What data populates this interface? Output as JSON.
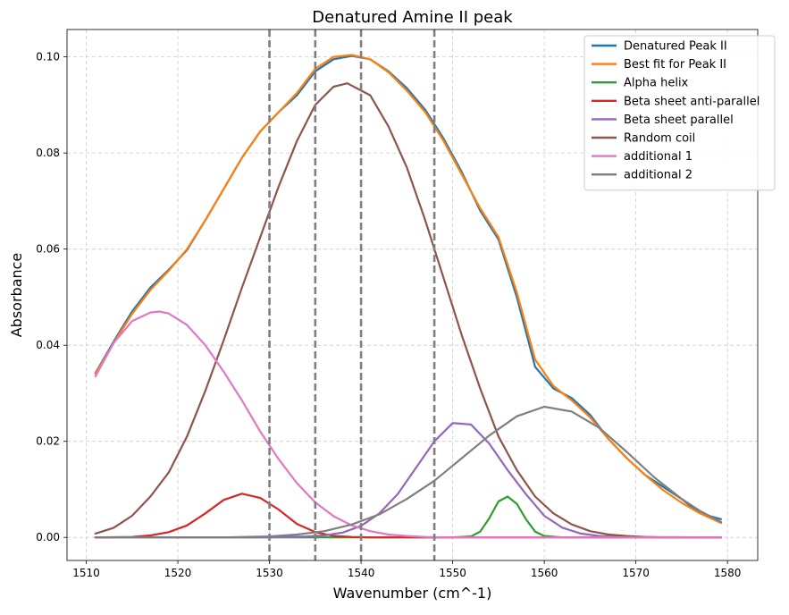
{
  "chart_data": {
    "type": "line",
    "title": "Denatured Amine II peak",
    "xlabel": "Wavenumber (cm^-1)",
    "ylabel": "Absorbance",
    "xlim": [
      1507.9,
      1583.3
    ],
    "ylim": [
      -0.0048,
      0.1057
    ],
    "x_ticks": [
      1510,
      1520,
      1530,
      1540,
      1550,
      1560,
      1570,
      1580
    ],
    "x_tick_labels": [
      "1510",
      "1520",
      "1530",
      "1540",
      "1550",
      "1560",
      "1570",
      "1580"
    ],
    "y_ticks": [
      0.0,
      0.02,
      0.04,
      0.06,
      0.08,
      0.1
    ],
    "y_tick_labels": [
      "0.00",
      "0.02",
      "0.04",
      "0.06",
      "0.08",
      "0.10"
    ],
    "grid": true,
    "legend_position": "top-right",
    "vlines": [
      1530,
      1535,
      1540,
      1548
    ],
    "vline_color": "#7f7f7f",
    "series": [
      {
        "name": "Denatured Peak II",
        "color": "#1f77b4",
        "x": [
          1511,
          1513,
          1515,
          1517,
          1519,
          1521,
          1523,
          1525,
          1527,
          1529,
          1531,
          1533,
          1535,
          1537,
          1539,
          1541,
          1543,
          1545,
          1547,
          1549,
          1551,
          1553,
          1555,
          1557,
          1559,
          1561,
          1563,
          1565,
          1567,
          1569,
          1571,
          1573,
          1575,
          1577,
          1579.3
        ],
        "y": [
          0.0342,
          0.0408,
          0.047,
          0.052,
          0.0557,
          0.0598,
          0.066,
          0.0725,
          0.079,
          0.0845,
          0.0885,
          0.092,
          0.097,
          0.0995,
          0.1002,
          0.0995,
          0.097,
          0.0935,
          0.089,
          0.083,
          0.076,
          0.068,
          0.062,
          0.05,
          0.0355,
          0.031,
          0.029,
          0.0255,
          0.0205,
          0.0165,
          0.013,
          0.0105,
          0.008,
          0.005,
          0.0038
        ]
      },
      {
        "name": "Best fit for Peak II",
        "color": "#ff7f0e",
        "x": [
          1511,
          1513,
          1515,
          1517,
          1519,
          1521,
          1523,
          1525,
          1527,
          1529,
          1531,
          1533,
          1535,
          1537,
          1539,
          1541,
          1543,
          1545,
          1547,
          1549,
          1551,
          1553,
          1555,
          1557,
          1559,
          1561,
          1563,
          1565,
          1567,
          1569,
          1571,
          1573,
          1575,
          1577,
          1579.3
        ],
        "y": [
          0.034,
          0.0405,
          0.0465,
          0.0515,
          0.0555,
          0.06,
          0.066,
          0.0725,
          0.079,
          0.0845,
          0.0885,
          0.0925,
          0.0975,
          0.1,
          0.1004,
          0.0995,
          0.0968,
          0.093,
          0.0885,
          0.0825,
          0.0755,
          0.0685,
          0.0625,
          0.051,
          0.037,
          0.0315,
          0.0285,
          0.025,
          0.0205,
          0.0165,
          0.013,
          0.0098,
          0.0072,
          0.005,
          0.003
        ]
      },
      {
        "name": "Alpha helix",
        "color": "#2ca02c",
        "x": [
          1511,
          1550,
          1552,
          1553,
          1554,
          1555,
          1556,
          1557,
          1558,
          1559,
          1560,
          1562,
          1579.3
        ],
        "y": [
          0.0,
          0.0,
          0.0002,
          0.0012,
          0.004,
          0.0075,
          0.0085,
          0.007,
          0.0038,
          0.0012,
          0.0003,
          0.0,
          0.0
        ]
      },
      {
        "name": "Beta sheet anti-parallel",
        "color": "#d62728",
        "x": [
          1511,
          1515,
          1517,
          1519,
          1521,
          1523,
          1525,
          1527,
          1529,
          1531,
          1533,
          1535,
          1537,
          1539,
          1541,
          1579.3
        ],
        "y": [
          0.0,
          0.0001,
          0.0004,
          0.0011,
          0.0025,
          0.005,
          0.0078,
          0.0091,
          0.0082,
          0.0058,
          0.0028,
          0.0011,
          0.0003,
          0.0001,
          0.0,
          0.0
        ]
      },
      {
        "name": "Beta sheet parallel",
        "color": "#9467bd",
        "x": [
          1511,
          1530,
          1534,
          1536,
          1538,
          1540,
          1542,
          1544,
          1546,
          1548,
          1550,
          1552,
          1554,
          1556,
          1558,
          1560,
          1562,
          1564,
          1566,
          1568,
          1579.3
        ],
        "y": [
          0.0,
          0.0,
          0.0002,
          0.0004,
          0.001,
          0.0024,
          0.005,
          0.009,
          0.0145,
          0.02,
          0.0238,
          0.0235,
          0.0195,
          0.014,
          0.009,
          0.0045,
          0.002,
          0.0008,
          0.0003,
          0.0001,
          0.0
        ]
      },
      {
        "name": "Random coil",
        "color": "#8c564b",
        "x": [
          1511,
          1513,
          1515,
          1517,
          1519,
          1521,
          1523,
          1525,
          1527,
          1529,
          1531,
          1533,
          1535,
          1537,
          1538.5,
          1541,
          1543,
          1545,
          1547,
          1549,
          1551,
          1553,
          1555,
          1557,
          1559,
          1561,
          1563,
          1565,
          1567,
          1569,
          1571,
          1573,
          1575,
          1577,
          1579.3
        ],
        "y": [
          0.0008,
          0.002,
          0.0045,
          0.0085,
          0.0135,
          0.021,
          0.0305,
          0.041,
          0.052,
          0.0625,
          0.073,
          0.0825,
          0.09,
          0.0938,
          0.0945,
          0.092,
          0.0855,
          0.077,
          0.066,
          0.054,
          0.042,
          0.031,
          0.021,
          0.014,
          0.0085,
          0.005,
          0.0027,
          0.0013,
          0.0006,
          0.0003,
          0.0001,
          0.0,
          0.0,
          0.0,
          0.0
        ]
      },
      {
        "name": "additional 1",
        "color": "#e377c2",
        "x": [
          1511,
          1513,
          1515,
          1517,
          1518,
          1519,
          1521,
          1523,
          1525,
          1527,
          1529,
          1531,
          1533,
          1535,
          1537,
          1539,
          1541,
          1543,
          1545,
          1547,
          1549,
          1551,
          1553,
          1555,
          1579.3
        ],
        "y": [
          0.0335,
          0.0405,
          0.045,
          0.0468,
          0.047,
          0.0466,
          0.0442,
          0.04,
          0.0345,
          0.0285,
          0.022,
          0.0163,
          0.0113,
          0.0073,
          0.0044,
          0.0025,
          0.0013,
          0.0006,
          0.0003,
          0.0001,
          0.0,
          0.0,
          0.0,
          0.0,
          0.0
        ]
      },
      {
        "name": "additional 2",
        "color": "#7f7f7f",
        "x": [
          1511,
          1525,
          1530,
          1533,
          1536,
          1539,
          1542,
          1545,
          1548,
          1551,
          1554,
          1557,
          1560,
          1563,
          1566,
          1569,
          1572,
          1575,
          1577,
          1579.3
        ],
        "y": [
          0.0,
          0.0,
          0.0002,
          0.0006,
          0.0013,
          0.0027,
          0.0048,
          0.008,
          0.0118,
          0.0165,
          0.0212,
          0.0252,
          0.0272,
          0.0262,
          0.0228,
          0.0178,
          0.0125,
          0.008,
          0.0055,
          0.0032
        ]
      }
    ]
  }
}
